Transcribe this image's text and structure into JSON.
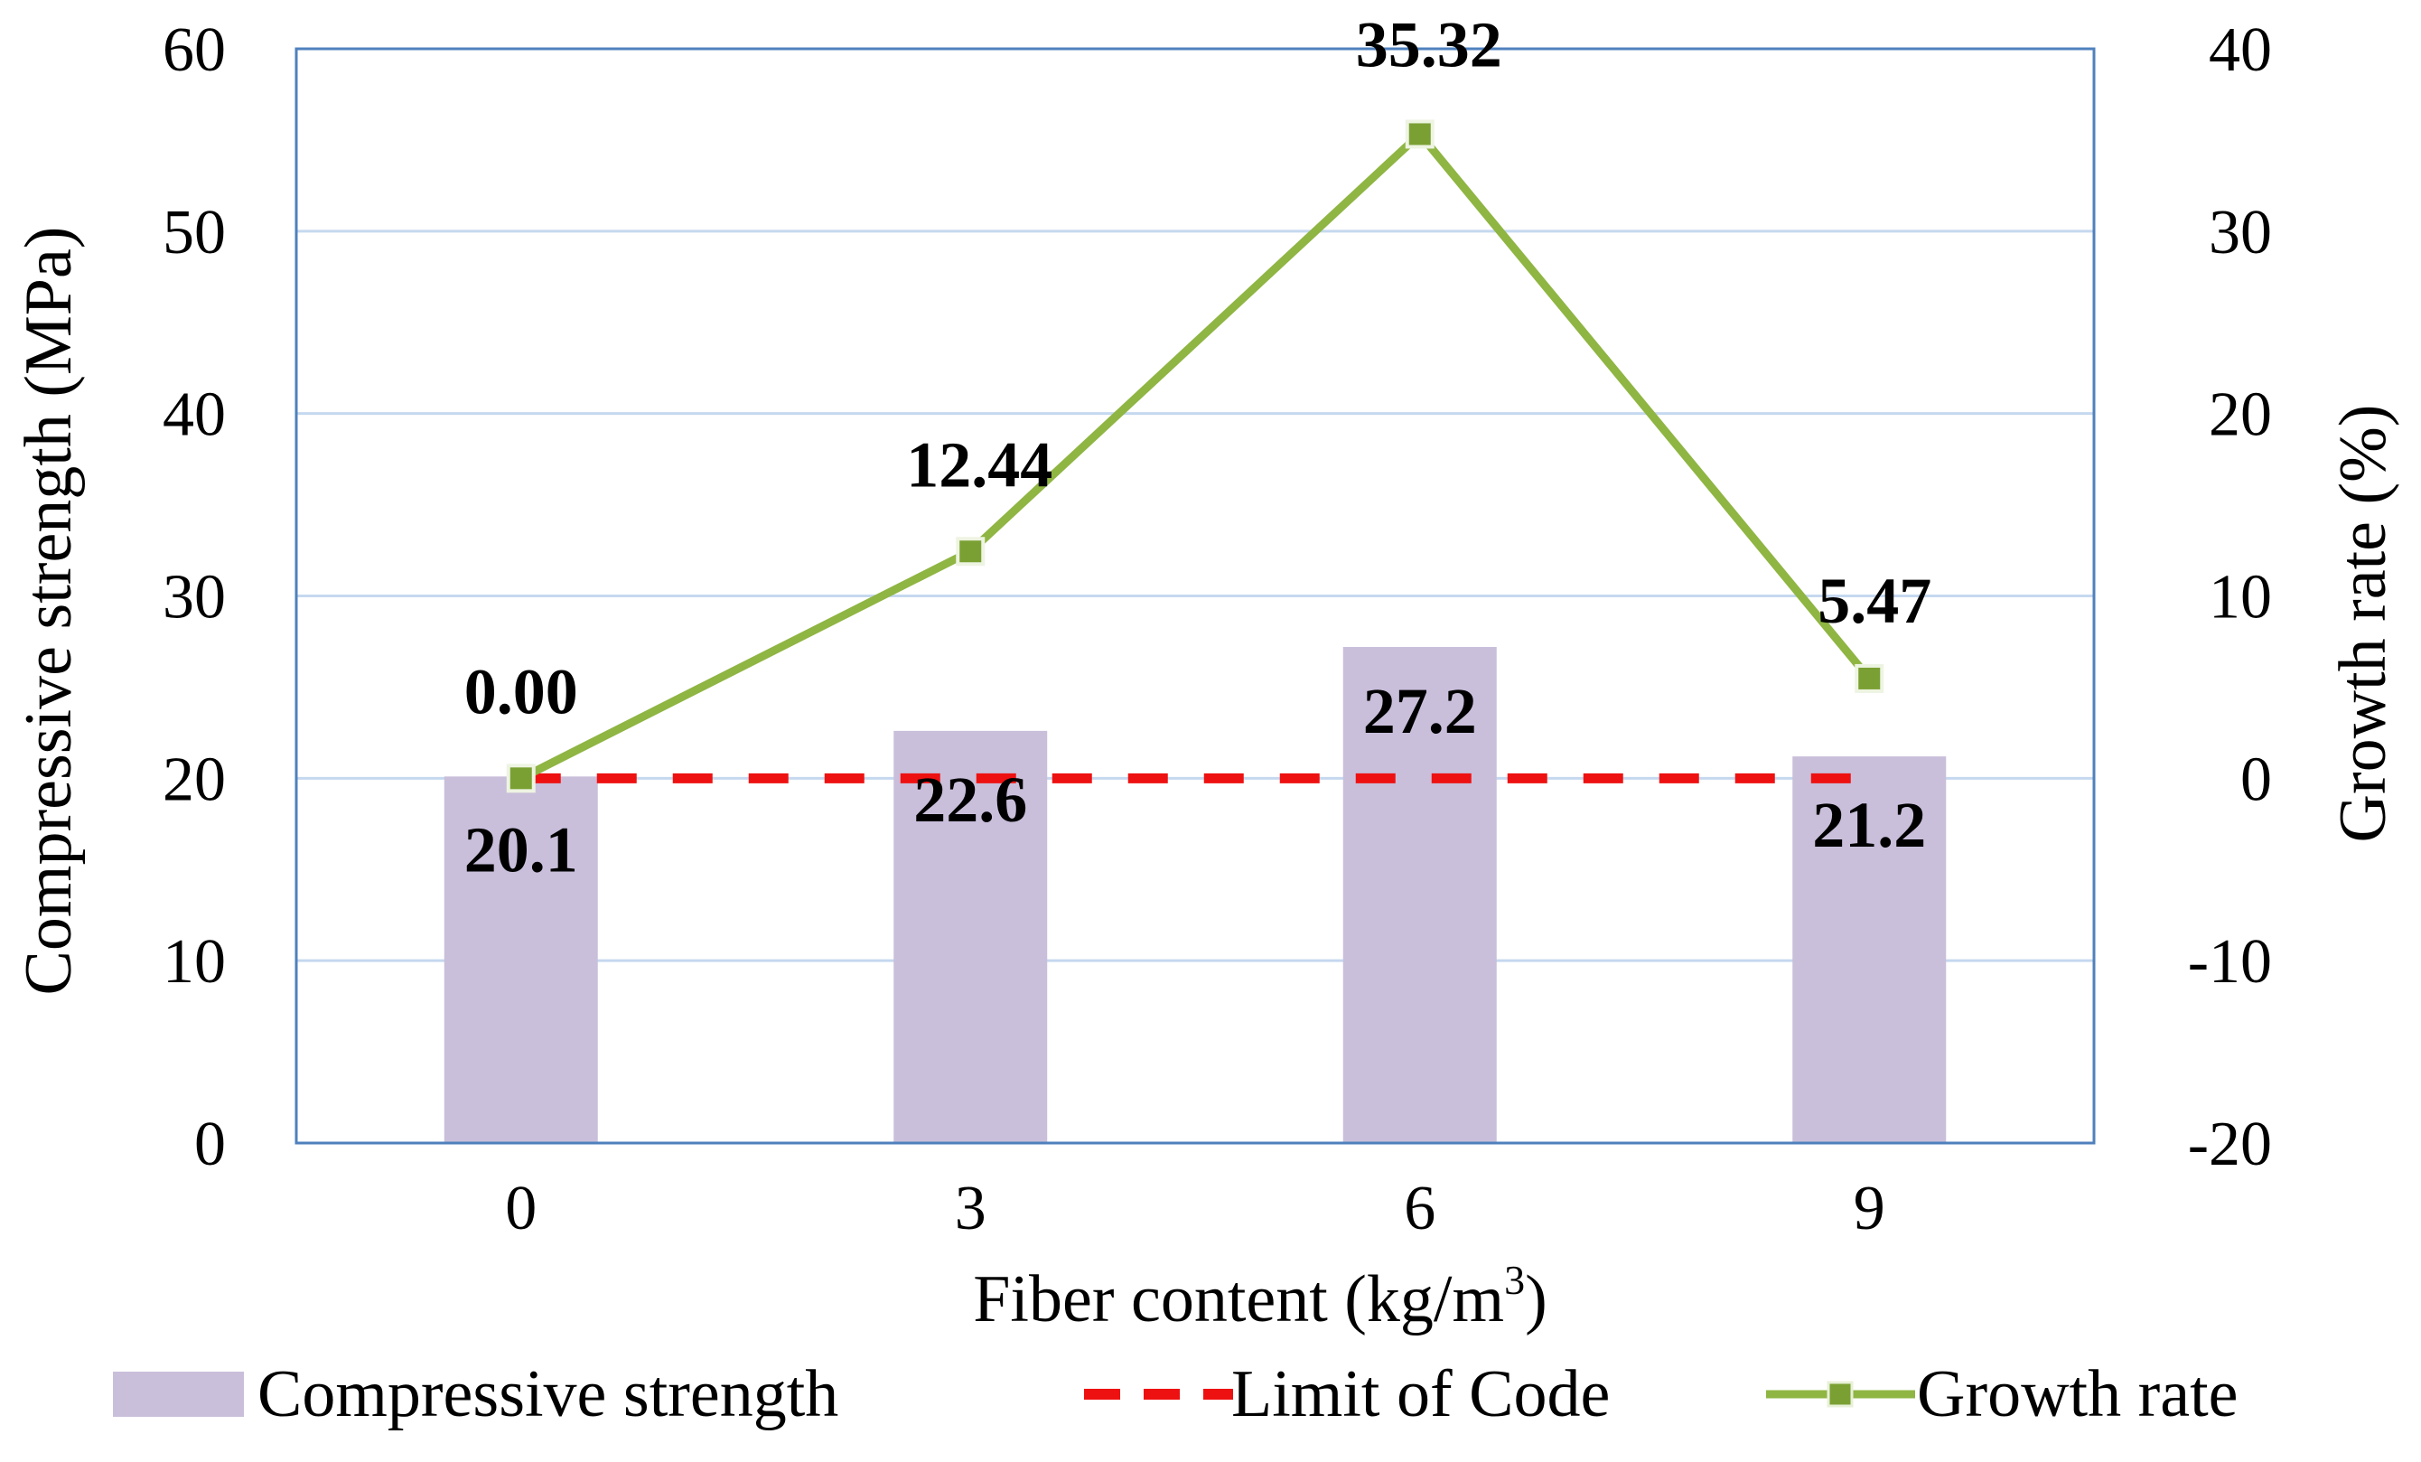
{
  "chart_data": {
    "type": "bar+line",
    "categories": [
      "0",
      "3",
      "6",
      "9"
    ],
    "xlabel": "Fiber content (kg/m",
    "xlabel_sup": "3",
    "xlabel_end": ")",
    "ylabel_left": "Compressive strength (MPa)",
    "ylabel_right": "Growth rate (%)",
    "ylim_left": [
      0,
      60
    ],
    "ylim_right": [
      -20,
      40
    ],
    "yticks_left": [
      "0",
      "10",
      "20",
      "30",
      "40",
      "50",
      "60"
    ],
    "yticks_right": [
      "-20",
      "-10",
      "0",
      "10",
      "20",
      "30",
      "40"
    ],
    "grid": true,
    "series": [
      {
        "name": "Compressive strength",
        "kind": "bar",
        "axis": "left",
        "values": [
          20.1,
          22.6,
          27.2,
          21.2
        ],
        "labels": [
          "20.1",
          "22.6",
          "27.2",
          "21.2"
        ],
        "color": "#c9bfdb"
      },
      {
        "name": "Limit of Code",
        "kind": "dashed-line",
        "axis": "left",
        "values": [
          20,
          20,
          20,
          20
        ],
        "color": "#ee1111"
      },
      {
        "name": "Growth rate",
        "kind": "line-marker",
        "axis": "right",
        "values": [
          0.0,
          12.44,
          35.32,
          5.47
        ],
        "labels": [
          "0.00",
          "12.44",
          "35.32",
          "5.47"
        ],
        "color": "#8fb543",
        "marker_color": "#7aa033"
      }
    ],
    "legend": {
      "position": "bottom",
      "items": [
        "Compressive strength",
        "Limit of Code",
        "Growth rate"
      ]
    },
    "colors": {
      "plot_border": "#4f81bd",
      "grid": "#c5d8ef"
    }
  }
}
